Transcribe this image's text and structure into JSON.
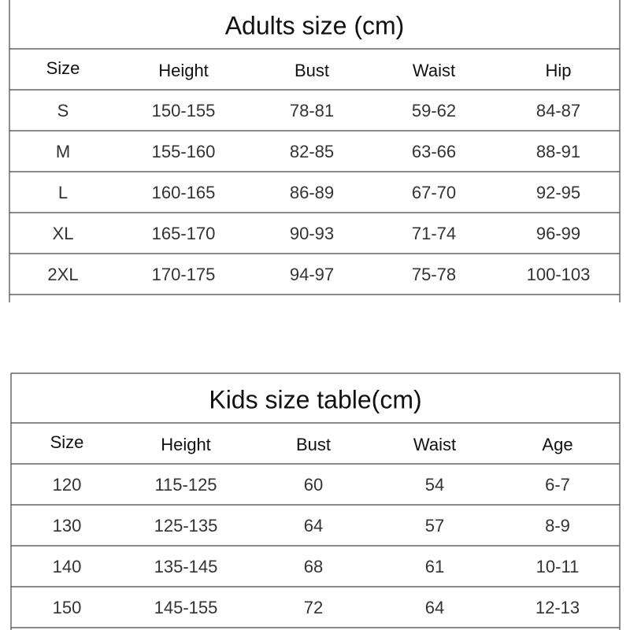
{
  "adults": {
    "title": "Adults size (cm)",
    "headers": [
      "Size",
      "Height",
      "Bust",
      "Waist",
      "Hip"
    ],
    "rows": [
      [
        "S",
        "150-155",
        "78-81",
        "59-62",
        "84-87"
      ],
      [
        "M",
        "155-160",
        "82-85",
        "63-66",
        "88-91"
      ],
      [
        "L",
        "160-165",
        "86-89",
        "67-70",
        "92-95"
      ],
      [
        "XL",
        "165-170",
        "90-93",
        "71-74",
        "96-99"
      ],
      [
        "2XL",
        "170-175",
        "94-97",
        "75-78",
        "100-103"
      ]
    ]
  },
  "kids": {
    "title": "Kids size table(cm)",
    "headers": [
      "Size",
      "Height",
      "Bust",
      "Waist",
      "Age"
    ],
    "rows": [
      [
        "120",
        "115-125",
        "60",
        "54",
        "6-7"
      ],
      [
        "130",
        "125-135",
        "64",
        "57",
        "8-9"
      ],
      [
        "140",
        "135-145",
        "68",
        "61",
        "10-11"
      ],
      [
        "150",
        "145-155",
        "72",
        "64",
        "12-13"
      ]
    ]
  }
}
